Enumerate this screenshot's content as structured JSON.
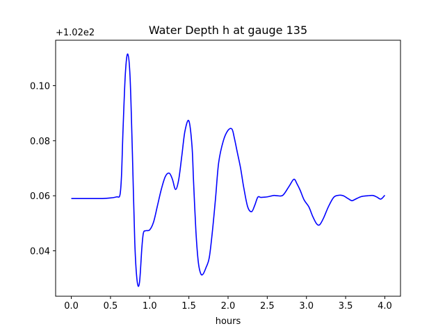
{
  "chart_data": {
    "type": "line",
    "title": "Water Depth h at gauge 135",
    "xlabel": "hours",
    "ylabel": "",
    "y_offset_label": "+1.02e2",
    "xlim": [
      -0.2,
      4.2
    ],
    "ylim": [
      0.0235,
      0.1165
    ],
    "x_ticks": [
      0.0,
      0.5,
      1.0,
      1.5,
      2.0,
      2.5,
      3.0,
      3.5,
      4.0
    ],
    "x_tick_labels": [
      "0.0",
      "0.5",
      "1.0",
      "1.5",
      "2.0",
      "2.5",
      "3.0",
      "3.5",
      "4.0"
    ],
    "y_ticks": [
      0.04,
      0.06,
      0.08,
      0.1
    ],
    "y_tick_labels": [
      "0.04",
      "0.06",
      "0.08",
      "0.10"
    ],
    "grid": false,
    "series": [
      {
        "color": "#0000ff",
        "x": [
          0.0,
          0.2,
          0.4,
          0.5,
          0.58,
          0.62,
          0.64,
          0.66,
          0.69,
          0.72,
          0.75,
          0.78,
          0.81,
          0.84,
          0.87,
          0.9,
          0.92,
          0.95,
          1.0,
          1.05,
          1.1,
          1.15,
          1.2,
          1.25,
          1.29,
          1.33,
          1.37,
          1.41,
          1.45,
          1.5,
          1.54,
          1.56,
          1.59,
          1.62,
          1.65,
          1.68,
          1.72,
          1.76,
          1.8,
          1.84,
          1.88,
          1.94,
          2.0,
          2.05,
          2.08,
          2.12,
          2.16,
          2.2,
          2.25,
          2.3,
          2.34,
          2.38,
          2.42,
          2.5,
          2.58,
          2.63,
          2.7,
          2.78,
          2.84,
          2.88,
          2.92,
          2.97,
          3.03,
          3.08,
          3.13,
          3.17,
          3.22,
          3.28,
          3.35,
          3.42,
          3.47,
          3.53,
          3.58,
          3.62,
          3.7,
          3.78,
          3.85,
          3.9,
          3.95,
          4.0
        ],
        "y": [
          0.059,
          0.059,
          0.059,
          0.0592,
          0.0596,
          0.0602,
          0.067,
          0.084,
          0.1045,
          0.1115,
          0.103,
          0.075,
          0.043,
          0.029,
          0.0285,
          0.041,
          0.0465,
          0.0473,
          0.0476,
          0.0505,
          0.0565,
          0.0625,
          0.067,
          0.0682,
          0.066,
          0.0623,
          0.0658,
          0.0745,
          0.0835,
          0.0872,
          0.078,
          0.065,
          0.047,
          0.036,
          0.0318,
          0.0315,
          0.034,
          0.0375,
          0.047,
          0.059,
          0.072,
          0.08,
          0.0838,
          0.0842,
          0.081,
          0.0755,
          0.07,
          0.063,
          0.056,
          0.0542,
          0.0565,
          0.0595,
          0.0594,
          0.0596,
          0.0601,
          0.06,
          0.0602,
          0.0635,
          0.066,
          0.0643,
          0.062,
          0.0585,
          0.056,
          0.0525,
          0.0498,
          0.0495,
          0.052,
          0.056,
          0.0595,
          0.0602,
          0.06,
          0.059,
          0.0582,
          0.0587,
          0.0597,
          0.06,
          0.0601,
          0.0595,
          0.0588,
          0.0602
        ]
      }
    ]
  }
}
